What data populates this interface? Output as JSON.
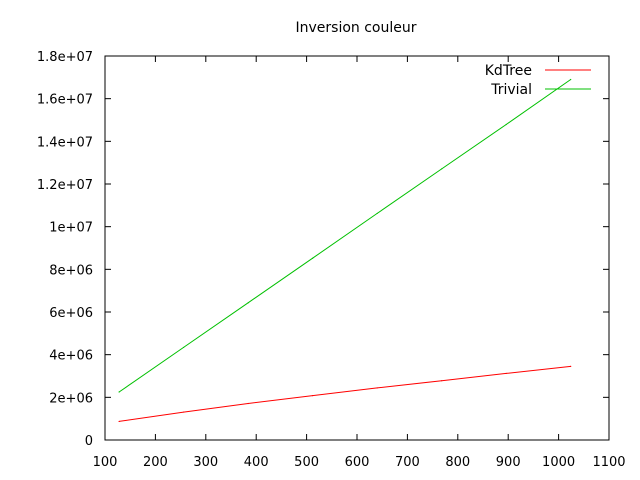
{
  "chart_data": {
    "type": "line",
    "title": "Inversion couleur",
    "xlabel": "",
    "ylabel": "",
    "xlim": [
      100,
      1100
    ],
    "ylim": [
      0,
      18000000
    ],
    "x_ticks": [
      100,
      200,
      300,
      400,
      500,
      600,
      700,
      800,
      900,
      1000,
      1100
    ],
    "x_tick_labels": [
      "100",
      "200",
      "300",
      "400",
      "500",
      "600",
      "700",
      "800",
      "900",
      "1000",
      "1100"
    ],
    "y_ticks": [
      0,
      2000000,
      4000000,
      6000000,
      8000000,
      10000000,
      12000000,
      14000000,
      16000000,
      18000000
    ],
    "y_tick_labels": [
      "0",
      "2e+06",
      "4e+06",
      "6e+06",
      "8e+06",
      "1e+07",
      "1.2e+07",
      "1.4e+07",
      "1.6e+07",
      "1.8e+07"
    ],
    "grid": false,
    "legend_position": "top-right",
    "series": [
      {
        "name": "KdTree",
        "color": "#ff0000",
        "x": [
          128,
          256,
          384,
          512,
          640,
          768,
          896,
          1024
        ],
        "y": [
          870000,
          1310000,
          1710000,
          2080000,
          2440000,
          2780000,
          3120000,
          3450000
        ]
      },
      {
        "name": "Trivial",
        "color": "#00c000",
        "x": [
          128,
          256,
          384,
          512,
          640,
          768,
          896,
          1024
        ],
        "y": [
          2250000,
          4340000,
          6430000,
          8520000,
          10620000,
          12710000,
          14790000,
          16900000
        ]
      }
    ]
  }
}
